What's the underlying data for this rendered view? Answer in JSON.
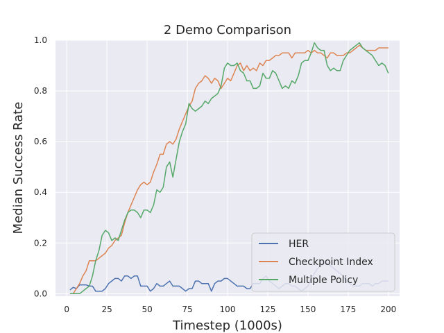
{
  "chart_data": {
    "type": "line",
    "title": "2 Demo Comparison",
    "xlabel": "Timestep (1000s)",
    "ylabel": "Median Success Rate",
    "xlim": [
      -7,
      207
    ],
    "ylim": [
      -0.01,
      1.0
    ],
    "xticks": [
      0,
      25,
      50,
      75,
      100,
      125,
      150,
      175,
      200
    ],
    "yticks": [
      0.0,
      0.2,
      0.4,
      0.6,
      0.8,
      1.0
    ],
    "xtick_labels": [
      "0",
      "25",
      "50",
      "75",
      "100",
      "125",
      "150",
      "175",
      "200"
    ],
    "ytick_labels": [
      "0.0",
      "0.2",
      "0.4",
      "0.6",
      "0.8",
      "1.0"
    ],
    "grid": true,
    "legend_position": "lower-right",
    "x": [
      2,
      4,
      6,
      8,
      10,
      12,
      14,
      16,
      18,
      20,
      22,
      24,
      26,
      28,
      30,
      32,
      34,
      36,
      38,
      40,
      42,
      44,
      46,
      48,
      50,
      52,
      54,
      56,
      58,
      60,
      62,
      64,
      66,
      68,
      70,
      72,
      74,
      76,
      78,
      80,
      82,
      84,
      86,
      88,
      90,
      92,
      94,
      96,
      98,
      100,
      102,
      104,
      106,
      108,
      110,
      112,
      114,
      116,
      118,
      120,
      122,
      124,
      126,
      128,
      130,
      132,
      134,
      136,
      138,
      140,
      142,
      144,
      146,
      148,
      150,
      152,
      154,
      156,
      158,
      160,
      162,
      164,
      166,
      168,
      170,
      172,
      174,
      176,
      178,
      180,
      182,
      184,
      186,
      188,
      190,
      192,
      194,
      196,
      198,
      200
    ],
    "series": [
      {
        "name": "HER",
        "color": "#4c72b0",
        "values": [
          0.015,
          0.025,
          0.02,
          0.035,
          0.035,
          0.035,
          0.03,
          0.03,
          0.01,
          0.01,
          0.01,
          0.02,
          0.04,
          0.05,
          0.06,
          0.06,
          0.05,
          0.07,
          0.07,
          0.06,
          0.07,
          0.07,
          0.03,
          0.03,
          0.03,
          0.01,
          0.02,
          0.04,
          0.03,
          0.03,
          0.04,
          0.05,
          0.03,
          0.03,
          0.03,
          0.02,
          0.01,
          0.02,
          0.02,
          0.05,
          0.05,
          0.04,
          0.04,
          0.04,
          0.01,
          0.04,
          0.05,
          0.05,
          0.06,
          0.06,
          0.05,
          0.04,
          0.03,
          0.03,
          0.03,
          0.02,
          0.02,
          0.04,
          0.04,
          0.04,
          0.06,
          0.07,
          0.05,
          0.04,
          0.03,
          0.02,
          0.03,
          0.04,
          0.04,
          0.03,
          0.03,
          0.02,
          0.01,
          0.02,
          0.03,
          0.06,
          0.08,
          0.1,
          0.11,
          0.12,
          0.12,
          0.11,
          0.1,
          0.09,
          0.08,
          0.07,
          0.05,
          0.04,
          0.03,
          0.03,
          0.03,
          0.04,
          0.04,
          0.04,
          0.03,
          0.04,
          0.04,
          0.05,
          0.05,
          0.05
        ]
      },
      {
        "name": "Checkpoint Index",
        "color": "#dd8452",
        "values": [
          0.0,
          0.0,
          0.02,
          0.04,
          0.07,
          0.09,
          0.13,
          0.13,
          0.13,
          0.14,
          0.15,
          0.16,
          0.18,
          0.19,
          0.21,
          0.22,
          0.23,
          0.28,
          0.32,
          0.35,
          0.38,
          0.41,
          0.43,
          0.44,
          0.43,
          0.44,
          0.48,
          0.51,
          0.55,
          0.55,
          0.59,
          0.6,
          0.59,
          0.61,
          0.65,
          0.68,
          0.71,
          0.74,
          0.76,
          0.81,
          0.83,
          0.84,
          0.86,
          0.85,
          0.83,
          0.85,
          0.84,
          0.81,
          0.83,
          0.85,
          0.84,
          0.87,
          0.9,
          0.91,
          0.88,
          0.9,
          0.88,
          0.89,
          0.88,
          0.91,
          0.9,
          0.92,
          0.92,
          0.93,
          0.94,
          0.94,
          0.95,
          0.95,
          0.95,
          0.93,
          0.95,
          0.95,
          0.95,
          0.95,
          0.96,
          0.95,
          0.96,
          0.95,
          0.95,
          0.94,
          0.93,
          0.95,
          0.95,
          0.94,
          0.94,
          0.94,
          0.95,
          0.95,
          0.96,
          0.97,
          0.98,
          0.97,
          0.96,
          0.96,
          0.96,
          0.96,
          0.97,
          0.97,
          0.97,
          0.97
        ]
      },
      {
        "name": "Multiple Policy",
        "color": "#55a868",
        "values": [
          0.0,
          0.0,
          0.0,
          0.0,
          0.01,
          0.02,
          0.03,
          0.07,
          0.13,
          0.17,
          0.23,
          0.25,
          0.24,
          0.21,
          0.22,
          0.21,
          0.25,
          0.29,
          0.32,
          0.33,
          0.33,
          0.32,
          0.3,
          0.33,
          0.33,
          0.32,
          0.35,
          0.41,
          0.4,
          0.42,
          0.5,
          0.52,
          0.46,
          0.53,
          0.6,
          0.64,
          0.67,
          0.75,
          0.73,
          0.72,
          0.73,
          0.74,
          0.76,
          0.75,
          0.77,
          0.78,
          0.79,
          0.82,
          0.89,
          0.91,
          0.9,
          0.9,
          0.91,
          0.88,
          0.87,
          0.84,
          0.84,
          0.81,
          0.81,
          0.82,
          0.87,
          0.85,
          0.85,
          0.88,
          0.87,
          0.84,
          0.81,
          0.82,
          0.81,
          0.84,
          0.83,
          0.86,
          0.91,
          0.92,
          0.92,
          0.95,
          0.99,
          0.97,
          0.96,
          0.96,
          0.9,
          0.88,
          0.89,
          0.88,
          0.88,
          0.92,
          0.94,
          0.96,
          0.97,
          0.98,
          0.99,
          0.97,
          0.96,
          0.95,
          0.94,
          0.92,
          0.9,
          0.91,
          0.9,
          0.87
        ]
      }
    ]
  }
}
